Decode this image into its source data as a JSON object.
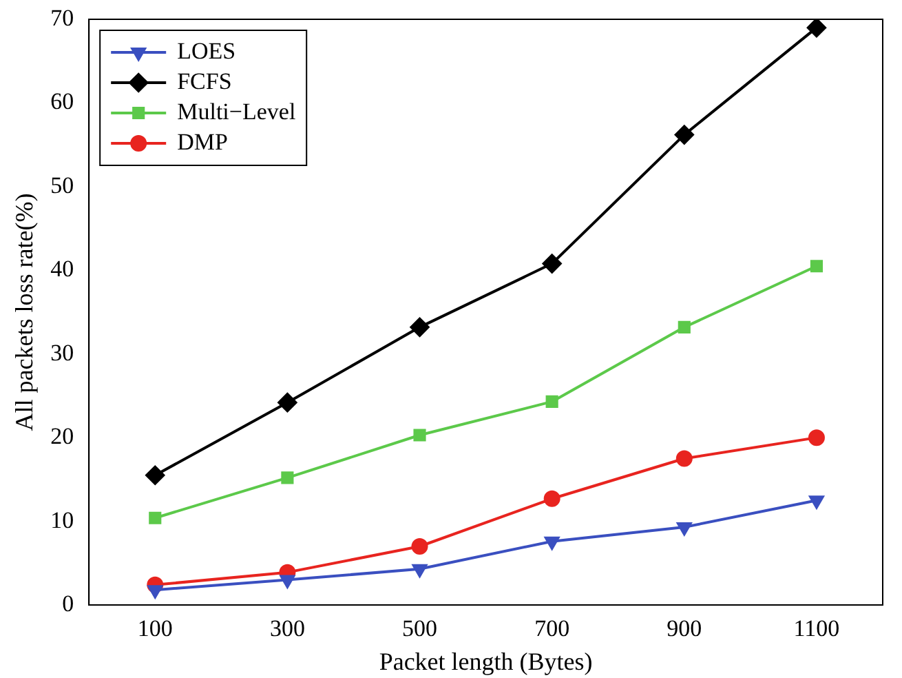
{
  "chart_data": {
    "type": "line",
    "xlabel": "Packet length (Bytes)",
    "ylabel": "All packets loss rate(%)",
    "x": [
      100,
      300,
      500,
      700,
      900,
      1100
    ],
    "xlim": [
      0,
      1200
    ],
    "xticks": [
      100,
      300,
      500,
      700,
      900,
      1100
    ],
    "ylim": [
      0,
      70
    ],
    "yticks": [
      0,
      10,
      20,
      30,
      40,
      50,
      60,
      70
    ],
    "grid": false,
    "legend": "top left",
    "line_style": "solid",
    "series": [
      {
        "name": "LOES",
        "color": "#3a4fc0",
        "marker": "triangle",
        "values": [
          1.8,
          3,
          4.3,
          7.6,
          9.3,
          12.5
        ]
      },
      {
        "name": "FCFS",
        "color": "#000000",
        "marker": "diamond",
        "values": [
          15.5,
          24.2,
          33.2,
          40.8,
          56.2,
          69
        ]
      },
      {
        "name": "Multi−Level",
        "color": "#5cc94a",
        "marker": "square",
        "values": [
          10.4,
          15.2,
          20.3,
          24.3,
          33.2,
          40.5
        ]
      },
      {
        "name": "DMP",
        "color": "#e8241f",
        "marker": "circle",
        "values": [
          2.4,
          3.9,
          7,
          12.7,
          17.5,
          20
        ]
      }
    ]
  }
}
